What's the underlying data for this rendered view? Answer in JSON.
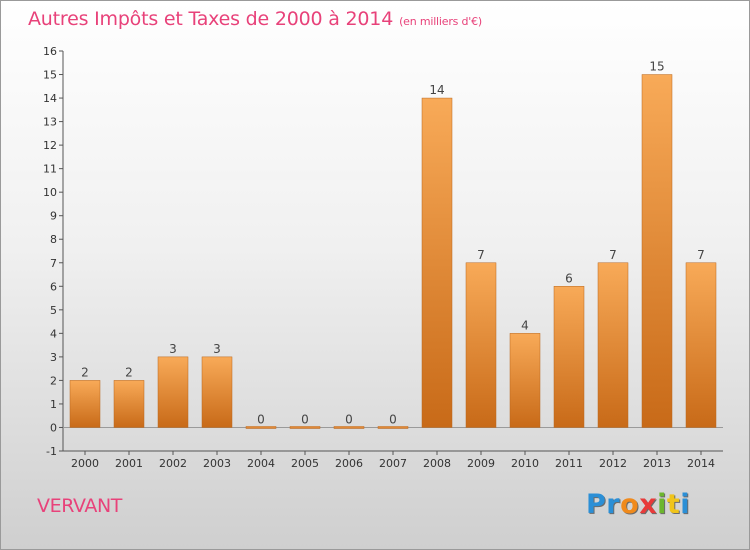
{
  "header": {
    "title": "Autres Impôts et Taxes de 2000 à 2014",
    "subtitle": "(en milliers d'€)"
  },
  "footer": {
    "commune": "VERVANT",
    "logo_letters": [
      {
        "char": "P",
        "color": "#2b8fd6"
      },
      {
        "char": "r",
        "color": "#2b8fd6"
      },
      {
        "char": "o",
        "color": "#f08a1c"
      },
      {
        "char": "x",
        "color": "#e83a3a"
      },
      {
        "char": "i",
        "color": "#6cb62d"
      },
      {
        "char": "t",
        "color": "#f0c419"
      },
      {
        "char": "i",
        "color": "#2b8fd6"
      }
    ]
  },
  "colors": {
    "accent": "#e8427a",
    "bar_light": "#f8aa58",
    "bar_dark": "#c86a18"
  },
  "chart_data": {
    "type": "bar",
    "title": "Autres Impôts et Taxes de 2000 à 2014",
    "subtitle": "(en milliers d'€)",
    "categories": [
      "2000",
      "2001",
      "2002",
      "2003",
      "2004",
      "2005",
      "2006",
      "2007",
      "2008",
      "2009",
      "2010",
      "2011",
      "2012",
      "2013",
      "2014"
    ],
    "values": [
      2,
      2,
      3,
      3,
      0,
      0,
      0,
      0,
      14,
      7,
      4,
      6,
      7,
      15,
      7
    ],
    "ylim": [
      -1,
      16
    ],
    "yticks": [
      -1,
      0,
      1,
      2,
      3,
      4,
      5,
      6,
      7,
      8,
      9,
      10,
      11,
      12,
      13,
      14,
      15,
      16
    ],
    "xlabel": "",
    "ylabel": "",
    "grid": false
  }
}
